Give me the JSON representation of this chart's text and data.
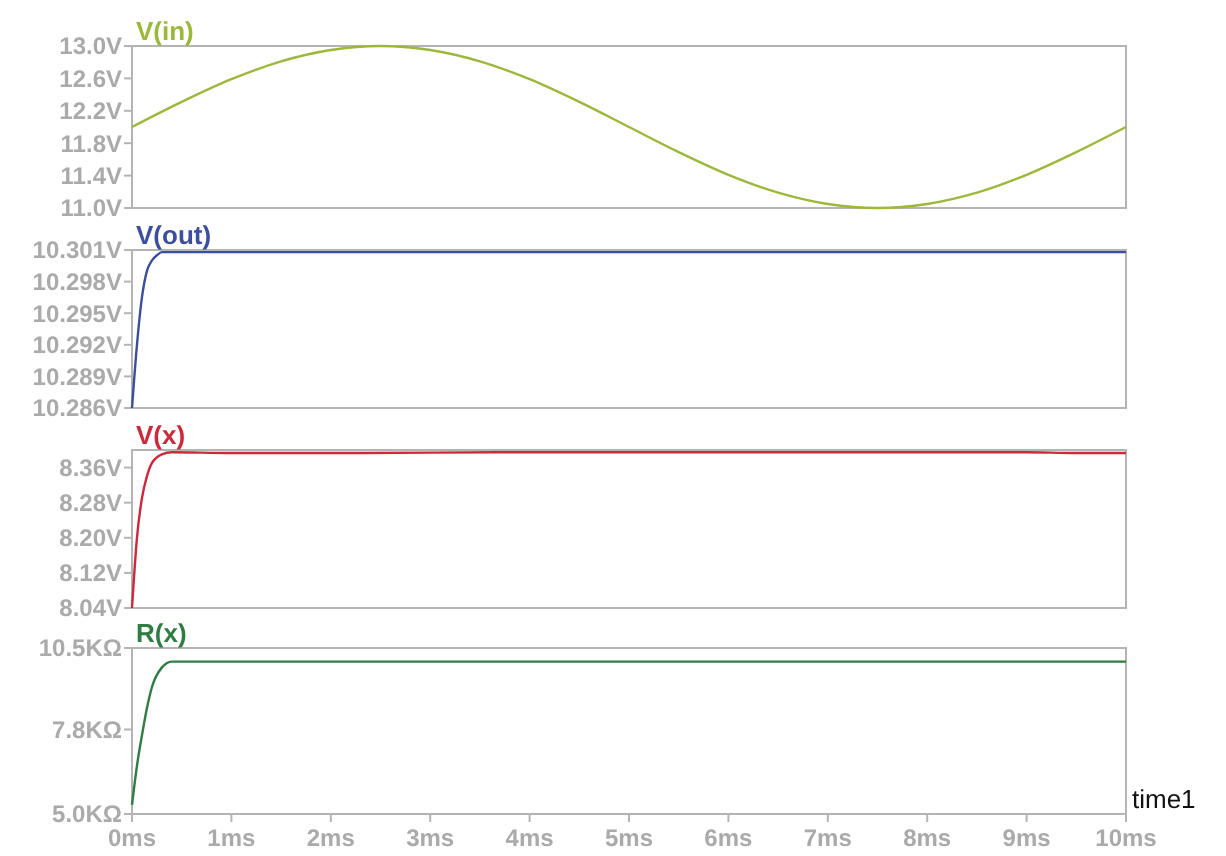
{
  "chart_data": [
    {
      "type": "line",
      "x": [
        0,
        0.5,
        1,
        1.5,
        2,
        2.5,
        3,
        3.5,
        4,
        4.5,
        5,
        5.5,
        6,
        6.5,
        7,
        7.5,
        8,
        8.5,
        9,
        9.5,
        10
      ],
      "series": [
        {
          "name": "V(in)",
          "color": "#9bb83a",
          "values": [
            12.0,
            12.31,
            12.59,
            12.81,
            12.95,
            13.0,
            12.95,
            12.81,
            12.59,
            12.31,
            12.0,
            11.69,
            11.41,
            11.19,
            11.05,
            11.0,
            11.05,
            11.19,
            11.41,
            11.69,
            12.0
          ]
        }
      ],
      "xlim": [
        0,
        10
      ],
      "ylim": [
        11.0,
        13.0
      ],
      "yticks": [
        {
          "value": 11.0,
          "label": "11.0V"
        },
        {
          "value": 11.4,
          "label": "11.4V"
        },
        {
          "value": 11.8,
          "label": "11.8V"
        },
        {
          "value": 12.2,
          "label": "12.2V"
        },
        {
          "value": 12.6,
          "label": "12.6V"
        },
        {
          "value": 13.0,
          "label": "13.0V"
        }
      ],
      "tick_labels": "y"
    },
    {
      "type": "line",
      "x": [
        0,
        0.05,
        0.1,
        0.15,
        0.2,
        0.25,
        0.3,
        0.4,
        1,
        2,
        3,
        4,
        5,
        6,
        7,
        8,
        9,
        10
      ],
      "series": [
        {
          "name": "V(out)",
          "color": "#3b4f9c",
          "values": [
            10.286,
            10.292,
            10.2965,
            10.299,
            10.3,
            10.3005,
            10.3008,
            10.3008,
            10.3008,
            10.3008,
            10.3008,
            10.3008,
            10.3008,
            10.3008,
            10.3008,
            10.3008,
            10.3008,
            10.3008
          ]
        }
      ],
      "xlim": [
        0,
        10
      ],
      "ylim": [
        10.286,
        10.301
      ],
      "yticks": [
        {
          "value": 10.286,
          "label": "10.286V"
        },
        {
          "value": 10.289,
          "label": "10.289V"
        },
        {
          "value": 10.292,
          "label": "10.292V"
        },
        {
          "value": 10.295,
          "label": "10.295V"
        },
        {
          "value": 10.298,
          "label": "10.298V"
        },
        {
          "value": 10.301,
          "label": "10.301V"
        }
      ],
      "tick_labels": "y"
    },
    {
      "type": "line",
      "x": [
        0,
        0.05,
        0.1,
        0.15,
        0.2,
        0.3,
        0.4,
        1,
        2,
        3,
        4,
        5,
        6,
        7,
        8,
        9,
        9.5,
        10
      ],
      "series": [
        {
          "name": "V(x)",
          "color": "#cc2a3a",
          "values": [
            8.04,
            8.2,
            8.29,
            8.34,
            8.37,
            8.39,
            8.395,
            8.393,
            8.393,
            8.394,
            8.395,
            8.395,
            8.395,
            8.395,
            8.395,
            8.395,
            8.393,
            8.393
          ]
        }
      ],
      "xlim": [
        0,
        10
      ],
      "ylim": [
        8.04,
        8.4
      ],
      "yticks": [
        {
          "value": 8.04,
          "label": "8.04V"
        },
        {
          "value": 8.12,
          "label": "8.12V"
        },
        {
          "value": 8.2,
          "label": "8.20V"
        },
        {
          "value": 8.28,
          "label": "8.28V"
        },
        {
          "value": 8.36,
          "label": "8.36V"
        }
      ],
      "tick_labels": "y"
    },
    {
      "type": "line",
      "x": [
        0,
        0.05,
        0.1,
        0.15,
        0.2,
        0.3,
        0.4,
        1,
        2,
        3,
        4,
        5,
        6,
        7,
        8,
        9,
        10
      ],
      "series": [
        {
          "name": "R(x)",
          "color": "#2f7d43",
          "values": [
            5.3,
            6.6,
            7.6,
            8.5,
            9.2,
            9.85,
            10.05,
            10.05,
            10.05,
            10.05,
            10.05,
            10.05,
            10.05,
            10.05,
            10.05,
            10.05,
            10.05
          ]
        }
      ],
      "xlim": [
        0,
        10
      ],
      "xticks": [
        {
          "value": 0,
          "label": "0ms"
        },
        {
          "value": 1,
          "label": "1ms"
        },
        {
          "value": 2,
          "label": "2ms"
        },
        {
          "value": 3,
          "label": "3ms"
        },
        {
          "value": 4,
          "label": "4ms"
        },
        {
          "value": 5,
          "label": "5ms"
        },
        {
          "value": 6,
          "label": "6ms"
        },
        {
          "value": 7,
          "label": "7ms"
        },
        {
          "value": 8,
          "label": "8ms"
        },
        {
          "value": 9,
          "label": "9ms"
        },
        {
          "value": 10,
          "label": "10ms"
        }
      ],
      "ylim": [
        5.0,
        10.5
      ],
      "yticks": [
        {
          "value": 5.0,
          "label": "5.0KΩ"
        },
        {
          "value": 7.8,
          "label": "7.8KΩ"
        },
        {
          "value": 10.5,
          "label": "10.5KΩ"
        }
      ],
      "annotations": [
        "time1"
      ]
    }
  ]
}
